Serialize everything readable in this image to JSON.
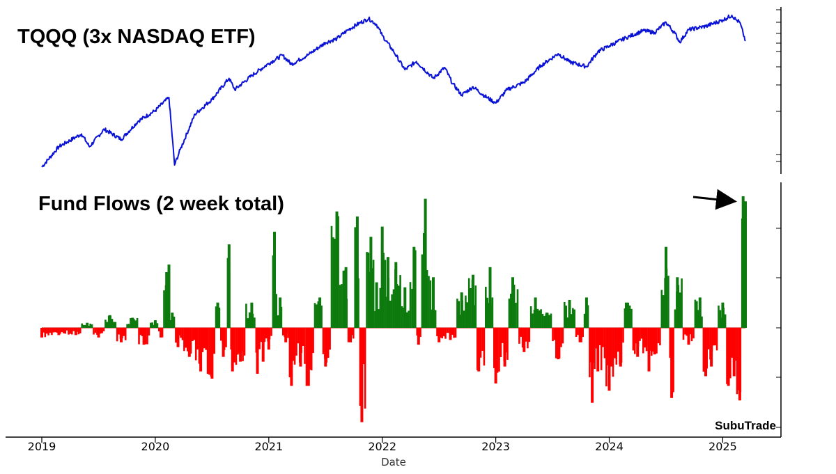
{
  "chart_data": [
    {
      "type": "line",
      "title": "TQQQ (3x NASDAQ ETF)",
      "xlabel": "",
      "ylabel": "",
      "log_scale": true,
      "grid": false,
      "colors": {
        "line": "#0a12d6"
      },
      "xlim": [
        2019.0,
        2025.2
      ],
      "x": [
        2019.0,
        2019.15,
        2019.3,
        2019.35,
        2019.42,
        2019.55,
        2019.7,
        2019.85,
        2020.0,
        2020.12,
        2020.17,
        2020.22,
        2020.35,
        2020.5,
        2020.65,
        2020.7,
        2020.85,
        2021.0,
        2021.12,
        2021.2,
        2021.35,
        2021.5,
        2021.6,
        2021.7,
        2021.8,
        2021.88,
        2021.95,
        2022.0,
        2022.1,
        2022.2,
        2022.3,
        2022.45,
        2022.55,
        2022.62,
        2022.7,
        2022.8,
        2022.9,
        2023.0,
        2023.1,
        2023.25,
        2023.4,
        2023.55,
        2023.65,
        2023.8,
        2023.9,
        2024.0,
        2024.15,
        2024.3,
        2024.4,
        2024.5,
        2024.58,
        2024.62,
        2024.7,
        2024.85,
        2025.0,
        2025.08,
        2025.12,
        2025.15,
        2025.18,
        2025.2
      ],
      "values": [
        1.0,
        1.6,
        2.0,
        2.15,
        1.6,
        2.4,
        1.9,
        2.9,
        3.7,
        5.0,
        1.05,
        1.5,
        3.4,
        4.8,
        7.8,
        6.0,
        8.3,
        11.0,
        13.3,
        10.8,
        13.5,
        17.8,
        19.5,
        24.0,
        28.0,
        31.0,
        27.0,
        21.0,
        14.5,
        9.5,
        11.5,
        7.8,
        10.0,
        6.9,
        5.3,
        6.4,
        5.2,
        4.4,
        6.0,
        7.1,
        10.5,
        13.8,
        11.4,
        10.2,
        14.5,
        16.5,
        20.0,
        23.5,
        22.5,
        28.5,
        22.0,
        18.0,
        24.0,
        26.0,
        30.0,
        33.5,
        30.0,
        28.5,
        22.0,
        18.5
      ]
    },
    {
      "type": "bar",
      "title": "Fund Flows (2 week total)",
      "xlabel": "Date",
      "ylabel": "",
      "grid": false,
      "colors": {
        "positive": "#0c7a0c",
        "negative": "#ff0000"
      },
      "xlim": [
        2019.0,
        2025.2
      ],
      "ylim": [
        -2.0,
        2.8
      ],
      "x_ticks": [
        "2019",
        "2020",
        "2021",
        "2022",
        "2023",
        "2024",
        "2025"
      ],
      "x": [
        2019.0,
        2019.15,
        2019.3,
        2019.4,
        2019.5,
        2019.6,
        2019.7,
        2019.8,
        2019.9,
        2020.0,
        2020.05,
        2020.1,
        2020.12,
        2020.15,
        2020.2,
        2020.3,
        2020.4,
        2020.5,
        2020.55,
        2020.6,
        2020.65,
        2020.68,
        2020.75,
        2020.85,
        2020.9,
        2020.95,
        2021.0,
        2021.05,
        2021.1,
        2021.15,
        2021.2,
        2021.28,
        2021.35,
        2021.45,
        2021.5,
        2021.6,
        2021.68,
        2021.72,
        2021.78,
        2021.82,
        2021.9,
        2021.95,
        2022.0,
        2022.05,
        2022.12,
        2022.2,
        2022.28,
        2022.32,
        2022.38,
        2022.45,
        2022.5,
        2022.6,
        2022.7,
        2022.8,
        2022.85,
        2022.95,
        2023.0,
        2023.08,
        2023.15,
        2023.25,
        2023.35,
        2023.45,
        2023.55,
        2023.65,
        2023.75,
        2023.8,
        2023.85,
        2023.9,
        2024.0,
        2024.1,
        2024.15,
        2024.25,
        2024.35,
        2024.4,
        2024.5,
        2024.55,
        2024.6,
        2024.7,
        2024.8,
        2024.85,
        2024.9,
        2025.0,
        2025.05,
        2025.1,
        2025.15,
        2025.18,
        2025.2
      ],
      "values": [
        -0.2,
        -0.15,
        -0.15,
        0.1,
        -0.2,
        0.25,
        -0.3,
        0.2,
        -0.35,
        0.15,
        -0.2,
        1.1,
        1.25,
        0.3,
        -0.4,
        -0.6,
        -0.9,
        -1.05,
        0.5,
        -0.6,
        1.65,
        -0.9,
        -0.7,
        0.5,
        -0.95,
        -0.7,
        -0.45,
        1.9,
        0.6,
        -0.3,
        -1.2,
        -0.8,
        -1.2,
        0.6,
        -0.8,
        2.3,
        1.2,
        -0.3,
        2.2,
        -1.95,
        1.8,
        0.9,
        2.0,
        1.4,
        1.3,
        0.8,
        1.6,
        -0.35,
        2.55,
        1.0,
        -0.3,
        -0.25,
        0.7,
        1.05,
        -0.9,
        1.2,
        -1.15,
        -0.8,
        1.0,
        -0.5,
        0.6,
        0.3,
        -0.65,
        0.55,
        -0.3,
        0.6,
        -1.55,
        -0.9,
        -1.3,
        -0.8,
        0.5,
        -0.6,
        -0.9,
        -0.55,
        1.6,
        -1.45,
        1.0,
        -0.35,
        0.6,
        -1.0,
        -0.8,
        0.5,
        -1.2,
        -1.0,
        -1.5,
        2.6,
        2.5
      ]
    }
  ],
  "annotations": {
    "arrow": "pointing to latest inflow spike",
    "watermark": "SubuTrade"
  }
}
